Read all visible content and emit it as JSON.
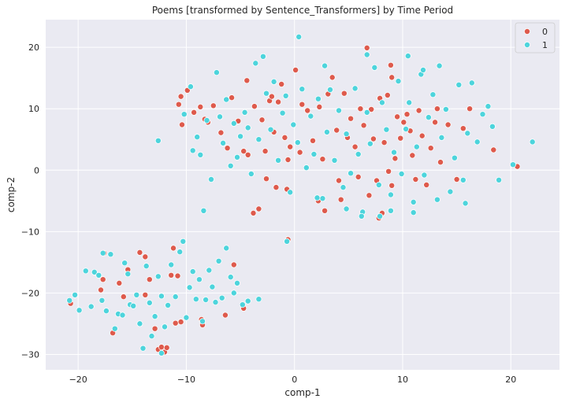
{
  "chart_data": {
    "type": "scatter",
    "title": "Poems [transformed by Sentence_Transformers] by Time Period",
    "xlabel": "comp-1",
    "ylabel": "comp-2",
    "xlim": [
      -23,
      24.5
    ],
    "ylim": [
      -32.5,
      24.5
    ],
    "xticks": [
      -20,
      -10,
      0,
      10,
      20
    ],
    "yticks": [
      -30,
      -20,
      -10,
      0,
      10,
      20
    ],
    "grid": true,
    "legend_position": "top-right",
    "colors": {
      "0": "#de5a4c",
      "1": "#4dd4dc"
    },
    "series": [
      {
        "name": "0",
        "points": [
          [
            -20.7,
            -21.7
          ],
          [
            -17.6,
            -13.5
          ],
          [
            -17.9,
            -19.5
          ],
          [
            -17.7,
            -17.8
          ],
          [
            -16.8,
            -26.5
          ],
          [
            -16.2,
            -18.4
          ],
          [
            -15.8,
            -20.6
          ],
          [
            -15.4,
            -16.2
          ],
          [
            -14.3,
            -13.4
          ],
          [
            -13.8,
            -14.1
          ],
          [
            -13.8,
            -20.3
          ],
          [
            -13.4,
            -17.8
          ],
          [
            -12.9,
            -25.8
          ],
          [
            -12.6,
            -29.2
          ],
          [
            -12.3,
            -28.8
          ],
          [
            -12.0,
            -29.6
          ],
          [
            -11.8,
            -28.9
          ],
          [
            -11.4,
            -17.1
          ],
          [
            -11.2,
            -12.7
          ],
          [
            -11.0,
            -24.9
          ],
          [
            -10.5,
            -24.7
          ],
          [
            -10.8,
            -17.2
          ],
          [
            -8.6,
            -24.3
          ],
          [
            -8.5,
            -25.2
          ],
          [
            -6.4,
            -23.6
          ],
          [
            -5.6,
            -15.4
          ],
          [
            -4.7,
            -22.5
          ],
          [
            -0.6,
            -11.3
          ],
          [
            -10.7,
            10.7
          ],
          [
            -10.5,
            12.0
          ],
          [
            -10.4,
            7.4
          ],
          [
            -9.9,
            13.0
          ],
          [
            -9.3,
            9.4
          ],
          [
            -8.7,
            10.3
          ],
          [
            -8.3,
            8.3
          ],
          [
            -8.0,
            7.8
          ],
          [
            -7.5,
            10.5
          ],
          [
            -6.8,
            6.1
          ],
          [
            -6.2,
            3.6
          ],
          [
            -5.8,
            11.8
          ],
          [
            -5.2,
            8.0
          ],
          [
            -4.7,
            3.1
          ],
          [
            -4.4,
            14.6
          ],
          [
            -4.3,
            2.5
          ],
          [
            -3.7,
            10.4
          ],
          [
            -3.3,
            -6.3
          ],
          [
            -3.0,
            8.2
          ],
          [
            -2.7,
            3.1
          ],
          [
            -2.6,
            -1.4
          ],
          [
            -2.3,
            11.3
          ],
          [
            -2.1,
            12.0
          ],
          [
            -1.9,
            6.2
          ],
          [
            -1.7,
            -2.8
          ],
          [
            -1.5,
            11.1
          ],
          [
            -1.2,
            14.0
          ],
          [
            -0.9,
            5.3
          ],
          [
            -0.7,
            -3.1
          ],
          [
            -0.6,
            1.7
          ],
          [
            0.1,
            16.3
          ],
          [
            0.5,
            2.9
          ],
          [
            0.7,
            10.7
          ],
          [
            1.2,
            9.7
          ],
          [
            1.7,
            4.8
          ],
          [
            2.3,
            10.3
          ],
          [
            2.6,
            1.8
          ],
          [
            2.8,
            -6.6
          ],
          [
            3.1,
            12.4
          ],
          [
            3.5,
            15.1
          ],
          [
            3.9,
            6.5
          ],
          [
            4.1,
            -1.7
          ],
          [
            4.3,
            -4.8
          ],
          [
            4.6,
            12.5
          ],
          [
            4.9,
            5.3
          ],
          [
            5.2,
            8.4
          ],
          [
            5.6,
            3.8
          ],
          [
            5.9,
            -1.1
          ],
          [
            6.1,
            10.0
          ],
          [
            6.4,
            7.3
          ],
          [
            6.7,
            19.9
          ],
          [
            6.9,
            -4.1
          ],
          [
            7.1,
            9.9
          ],
          [
            7.3,
            5.1
          ],
          [
            7.6,
            -1.7
          ],
          [
            7.9,
            11.7
          ],
          [
            8.1,
            -7.0
          ],
          [
            8.3,
            4.5
          ],
          [
            8.6,
            12.2
          ],
          [
            8.7,
            -0.2
          ],
          [
            8.9,
            17.1
          ],
          [
            9.0,
            15.1
          ],
          [
            9.3,
            1.9
          ],
          [
            9.5,
            8.7
          ],
          [
            9.8,
            5.2
          ],
          [
            10.1,
            7.8
          ],
          [
            10.4,
            9.1
          ],
          [
            10.7,
            6.4
          ],
          [
            10.9,
            2.4
          ],
          [
            11.2,
            -1.5
          ],
          [
            11.5,
            9.7
          ],
          [
            11.8,
            5.6
          ],
          [
            12.2,
            -2.4
          ],
          [
            12.6,
            3.6
          ],
          [
            13.0,
            7.8
          ],
          [
            13.5,
            1.3
          ],
          [
            14.2,
            7.4
          ],
          [
            15.0,
            -1.5
          ],
          [
            15.6,
            6.8
          ],
          [
            16.2,
            10.0
          ],
          [
            18.4,
            3.3
          ],
          [
            20.6,
            0.6
          ],
          [
            13.2,
            10.0
          ],
          [
            9.0,
            -2.5
          ],
          [
            7.8,
            -7.8
          ],
          [
            2.2,
            -5.0
          ],
          [
            -3.8,
            -7.0
          ],
          [
            -0.4,
            3.8
          ]
        ]
      },
      {
        "name": "1",
        "points": [
          [
            -20.8,
            -21.2
          ],
          [
            -20.3,
            -20.3
          ],
          [
            -19.9,
            -22.8
          ],
          [
            -19.3,
            -16.4
          ],
          [
            -18.8,
            -22.2
          ],
          [
            -18.5,
            -16.6
          ],
          [
            -18.1,
            -17.1
          ],
          [
            -17.8,
            -21.2
          ],
          [
            -17.4,
            -22.9
          ],
          [
            -17.0,
            -13.7
          ],
          [
            -16.6,
            -25.8
          ],
          [
            -16.3,
            -23.4
          ],
          [
            -15.9,
            -23.6
          ],
          [
            -15.7,
            -15.1
          ],
          [
            -15.4,
            -16.9
          ],
          [
            -15.2,
            -21.9
          ],
          [
            -14.9,
            -22.1
          ],
          [
            -14.6,
            -20.3
          ],
          [
            -14.3,
            -25.0
          ],
          [
            -14.0,
            -29.0
          ],
          [
            -13.7,
            -15.6
          ],
          [
            -13.4,
            -21.6
          ],
          [
            -13.2,
            -27.0
          ],
          [
            -12.9,
            -23.8
          ],
          [
            -12.6,
            -17.3
          ],
          [
            -12.3,
            -20.5
          ],
          [
            -12.0,
            -25.5
          ],
          [
            -11.7,
            -22.0
          ],
          [
            -11.4,
            -15.4
          ],
          [
            -11.0,
            -20.6
          ],
          [
            -10.6,
            -13.3
          ],
          [
            -10.3,
            -11.6
          ],
          [
            -10.0,
            -24.0
          ],
          [
            -9.7,
            -19.1
          ],
          [
            -9.4,
            -16.5
          ],
          [
            -9.1,
            -21.0
          ],
          [
            -8.8,
            -17.8
          ],
          [
            -8.5,
            -24.6
          ],
          [
            -8.2,
            -21.1
          ],
          [
            -7.9,
            -16.3
          ],
          [
            -7.6,
            -19.0
          ],
          [
            -7.3,
            -21.5
          ],
          [
            -7.0,
            -14.8
          ],
          [
            -6.7,
            -20.8
          ],
          [
            -6.3,
            -12.7
          ],
          [
            -5.9,
            -17.4
          ],
          [
            -5.6,
            -20.0
          ],
          [
            -5.3,
            -18.4
          ],
          [
            -4.8,
            -21.9
          ],
          [
            -4.3,
            -21.3
          ],
          [
            -3.3,
            -21.0
          ],
          [
            -12.3,
            -29.8
          ],
          [
            -17.7,
            -13.5
          ],
          [
            -12.6,
            4.8
          ],
          [
            -10.2,
            9.1
          ],
          [
            -9.6,
            13.6
          ],
          [
            -9.4,
            3.2
          ],
          [
            -9.0,
            5.4
          ],
          [
            -8.7,
            2.5
          ],
          [
            -8.4,
            -6.6
          ],
          [
            -8.1,
            8.1
          ],
          [
            -7.7,
            -1.5
          ],
          [
            -7.2,
            15.9
          ],
          [
            -6.9,
            8.7
          ],
          [
            -6.6,
            4.4
          ],
          [
            -6.3,
            11.5
          ],
          [
            -5.9,
            0.7
          ],
          [
            -5.6,
            7.6
          ],
          [
            -5.3,
            2.1
          ],
          [
            -5.0,
            5.5
          ],
          [
            -4.6,
            9.4
          ],
          [
            -4.3,
            6.9
          ],
          [
            -4.0,
            -0.6
          ],
          [
            -3.6,
            17.4
          ],
          [
            -3.3,
            5.0
          ],
          [
            -2.9,
            18.5
          ],
          [
            -2.6,
            12.5
          ],
          [
            -2.2,
            6.6
          ],
          [
            -1.9,
            14.4
          ],
          [
            -1.5,
            1.6
          ],
          [
            -1.1,
            9.3
          ],
          [
            -0.8,
            12.1
          ],
          [
            -0.4,
            -3.6
          ],
          [
            -0.1,
            7.4
          ],
          [
            0.3,
            4.5
          ],
          [
            0.4,
            21.7
          ],
          [
            0.7,
            13.2
          ],
          [
            1.1,
            0.4
          ],
          [
            1.5,
            8.8
          ],
          [
            1.8,
            2.6
          ],
          [
            2.2,
            11.6
          ],
          [
            2.6,
            -4.6
          ],
          [
            3.0,
            6.2
          ],
          [
            2.8,
            17.0
          ],
          [
            3.3,
            13.1
          ],
          [
            3.7,
            1.6
          ],
          [
            4.1,
            9.7
          ],
          [
            4.5,
            -2.8
          ],
          [
            4.8,
            5.9
          ],
          [
            5.2,
            -0.5
          ],
          [
            5.6,
            13.3
          ],
          [
            5.9,
            2.6
          ],
          [
            6.3,
            -6.8
          ],
          [
            6.7,
            9.4
          ],
          [
            7.0,
            4.3
          ],
          [
            7.4,
            16.7
          ],
          [
            7.8,
            -2.4
          ],
          [
            8.1,
            11.0
          ],
          [
            8.5,
            6.6
          ],
          [
            8.9,
            -4.0
          ],
          [
            9.2,
            2.9
          ],
          [
            9.6,
            14.5
          ],
          [
            9.9,
            -0.6
          ],
          [
            10.3,
            6.7
          ],
          [
            10.6,
            11.0
          ],
          [
            11.0,
            -5.2
          ],
          [
            11.3,
            3.8
          ],
          [
            11.7,
            15.6
          ],
          [
            12.0,
            -0.8
          ],
          [
            12.4,
            8.6
          ],
          [
            12.8,
            12.3
          ],
          [
            13.2,
            -4.8
          ],
          [
            13.6,
            5.3
          ],
          [
            14.0,
            9.9
          ],
          [
            14.4,
            -3.5
          ],
          [
            14.8,
            2.0
          ],
          [
            15.2,
            13.9
          ],
          [
            15.6,
            -1.6
          ],
          [
            16.0,
            6.0
          ],
          [
            16.4,
            14.2
          ],
          [
            16.9,
            4.6
          ],
          [
            17.4,
            9.1
          ],
          [
            17.9,
            10.4
          ],
          [
            18.3,
            7.1
          ],
          [
            18.9,
            -1.6
          ],
          [
            20.2,
            0.9
          ],
          [
            22.0,
            4.6
          ],
          [
            10.5,
            18.6
          ],
          [
            11.9,
            16.3
          ],
          [
            13.4,
            17.0
          ],
          [
            15.8,
            -5.4
          ],
          [
            6.7,
            18.8
          ],
          [
            -0.7,
            -11.6
          ],
          [
            2.1,
            -4.5
          ],
          [
            4.8,
            -6.3
          ],
          [
            8.9,
            -6.6
          ],
          [
            11.0,
            -6.9
          ],
          [
            6.2,
            -7.5
          ],
          [
            7.9,
            -7.5
          ]
        ]
      }
    ]
  }
}
